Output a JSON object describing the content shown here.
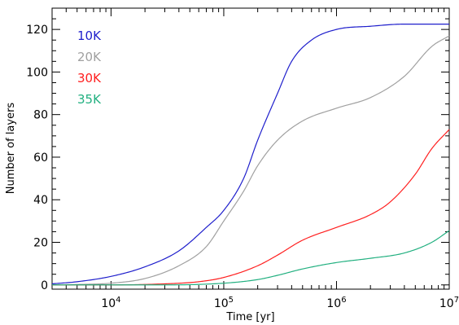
{
  "chart_data": {
    "type": "line",
    "xscale": "log",
    "xlim": [
      3000,
      10000000
    ],
    "ylim": [
      -2,
      130
    ],
    "xlabel": "Time [yr]",
    "ylabel": "Number of layers",
    "x_ticks": [
      {
        "value": 10000,
        "base": "10",
        "exp": "4"
      },
      {
        "value": 100000,
        "base": "10",
        "exp": "5"
      },
      {
        "value": 1000000,
        "base": "10",
        "exp": "6"
      },
      {
        "value": 10000000,
        "base": "10",
        "exp": "7"
      }
    ],
    "y_ticks": [
      0,
      20,
      40,
      60,
      80,
      100,
      120
    ],
    "legend_position": "top-left",
    "grid": false,
    "series": [
      {
        "name": "10K",
        "color": "#1f1fcc",
        "x": [
          3000,
          5000,
          10000,
          20000,
          40000,
          70000,
          100000,
          150000,
          200000,
          300000,
          400000,
          600000,
          1000000,
          2000000,
          4000000,
          10000000
        ],
        "y": [
          0.5,
          1.5,
          4,
          8.5,
          16,
          27,
          35,
          50,
          68,
          90,
          105,
          115,
          120,
          121.5,
          122.5,
          122.5
        ]
      },
      {
        "name": "20K",
        "color": "#a0a0a0",
        "x": [
          3000,
          5000,
          10000,
          20000,
          40000,
          70000,
          100000,
          150000,
          200000,
          300000,
          500000,
          1000000,
          2000000,
          4000000,
          7000000,
          10000000
        ],
        "y": [
          0,
          0.2,
          0.8,
          3,
          9,
          18,
          30,
          44,
          56,
          68,
          77,
          83,
          88,
          98,
          112,
          117
        ]
      },
      {
        "name": "30K",
        "color": "#ff2020",
        "x": [
          3000,
          10000,
          30000,
          60000,
          100000,
          200000,
          300000,
          500000,
          1000000,
          2000000,
          3000000,
          5000000,
          7000000,
          10000000
        ],
        "y": [
          0,
          0,
          0.5,
          1.5,
          3.5,
          9,
          14,
          21,
          27,
          33,
          39,
          52,
          64,
          73
        ]
      },
      {
        "name": "35K",
        "color": "#22b080",
        "x": [
          3000,
          30000,
          100000,
          200000,
          300000,
          500000,
          1000000,
          2000000,
          4000000,
          7000000,
          10000000
        ],
        "y": [
          0,
          0,
          0.8,
          2.5,
          4.5,
          7.5,
          10.5,
          12.5,
          15,
          20,
          25.5
        ]
      }
    ]
  }
}
